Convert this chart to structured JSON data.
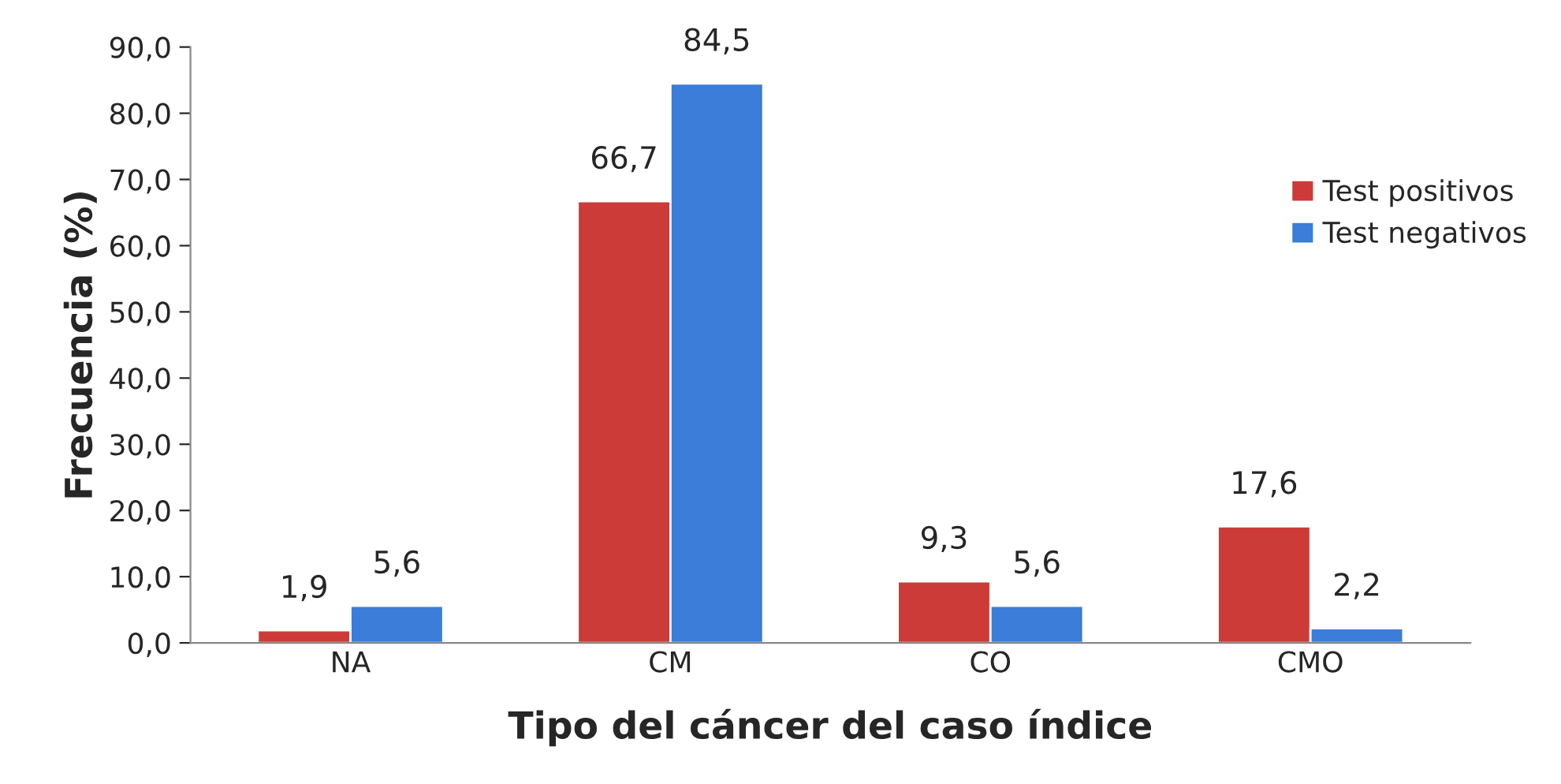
{
  "chart_data": {
    "type": "bar",
    "xlabel": "Tipo del cáncer del caso índice",
    "ylabel": "Frecuencia (%)",
    "categories": [
      "NA",
      "CM",
      "CO",
      "CMO"
    ],
    "series": [
      {
        "name": "Test positivos",
        "color": "#cc3b37",
        "values": [
          1.9,
          66.7,
          9.3,
          17.6
        ],
        "value_labels": [
          "1,9",
          "66,7",
          "9,3",
          "17,6"
        ]
      },
      {
        "name": "Test negativos",
        "color": "#3b7dd8",
        "values": [
          5.6,
          84.5,
          5.6,
          2.2
        ],
        "value_labels": [
          "5,6",
          "84,5",
          "5,6",
          "2,2"
        ]
      }
    ],
    "ylim": [
      0,
      90
    ],
    "yticks": [
      {
        "value": 0,
        "label": "0,0"
      },
      {
        "value": 10,
        "label": "10,0"
      },
      {
        "value": 20,
        "label": "20,0"
      },
      {
        "value": 30,
        "label": "30,0"
      },
      {
        "value": 40,
        "label": "40,0"
      },
      {
        "value": 50,
        "label": "50,0"
      },
      {
        "value": 60,
        "label": "60,0"
      },
      {
        "value": 70,
        "label": "70,0"
      },
      {
        "value": 80,
        "label": "80,0"
      },
      {
        "value": 90,
        "label": "90,0"
      }
    ],
    "grid": false,
    "legend": "right"
  }
}
